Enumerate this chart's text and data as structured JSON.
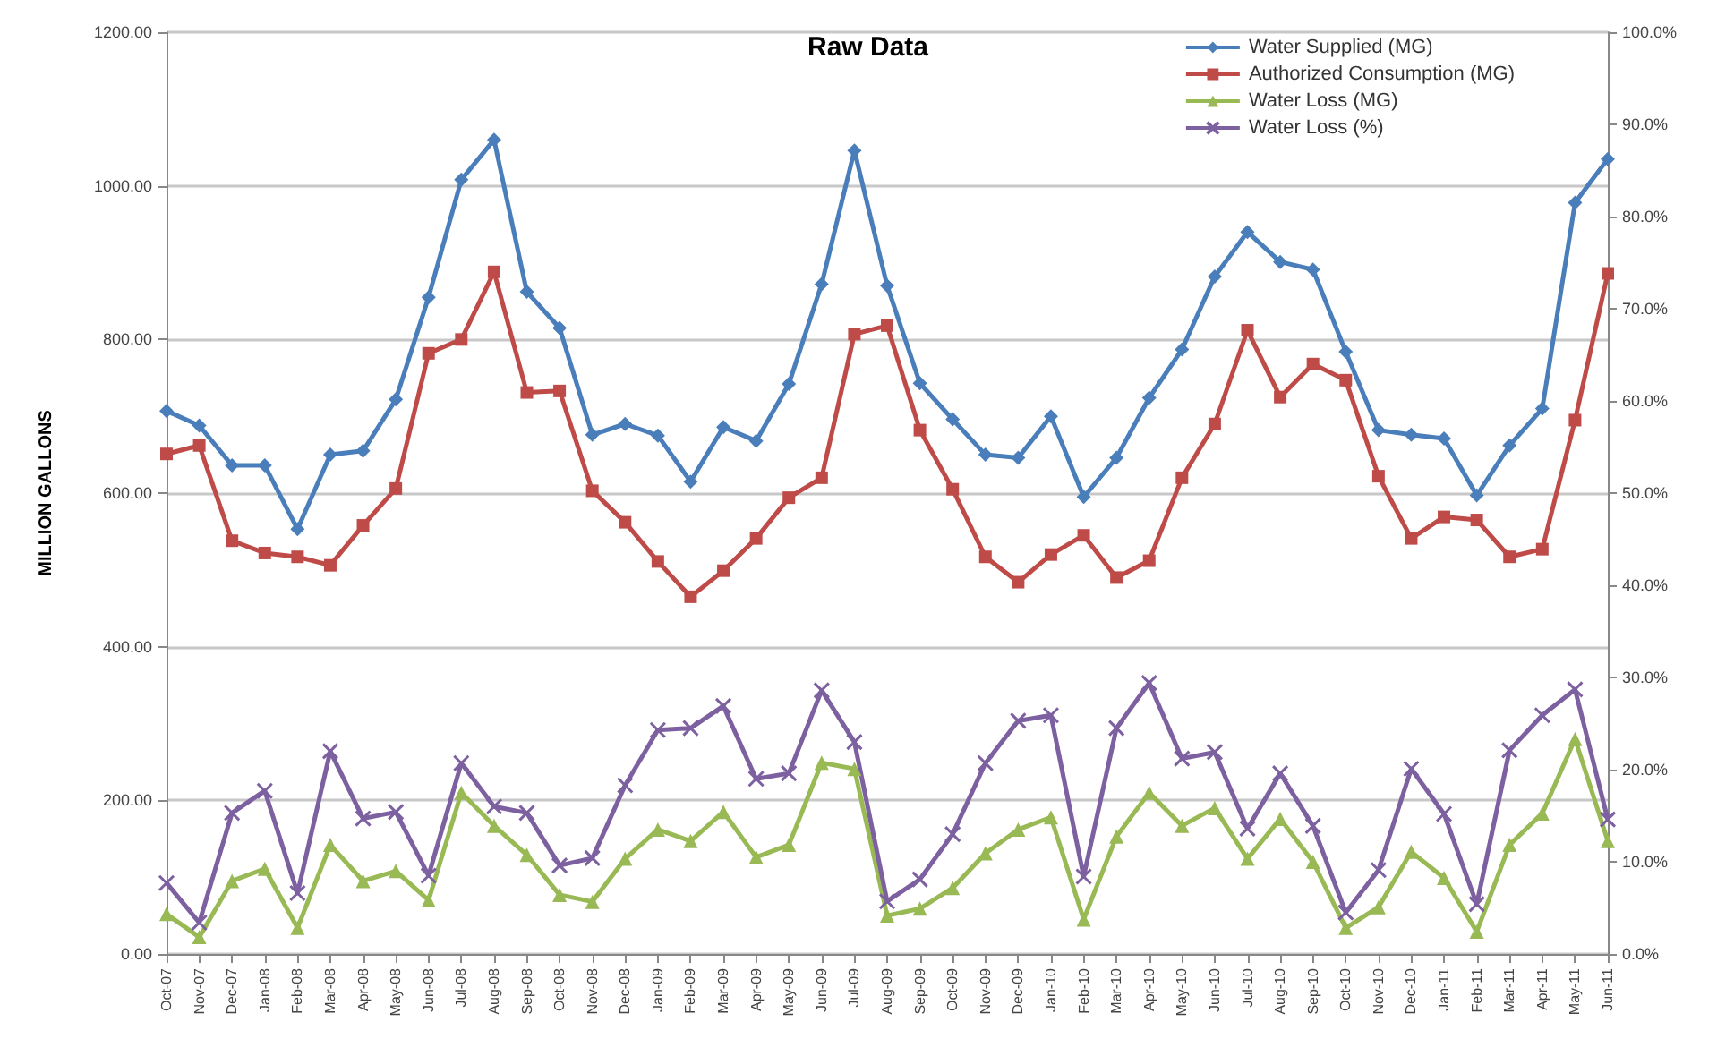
{
  "chart_data": {
    "type": "line",
    "title": "Raw Data",
    "ylabel": "MILLION GALLONS",
    "categories": [
      "Oct-07",
      "Nov-07",
      "Dec-07",
      "Jan-08",
      "Feb-08",
      "Mar-08",
      "Apr-08",
      "May-08",
      "Jun-08",
      "Jul-08",
      "Aug-08",
      "Sep-08",
      "Oct-08",
      "Nov-08",
      "Dec-08",
      "Jan-09",
      "Feb-09",
      "Mar-09",
      "Apr-09",
      "May-09",
      "Jun-09",
      "Jul-09",
      "Aug-09",
      "Sep-09",
      "Oct-09",
      "Nov-09",
      "Dec-09",
      "Jan-10",
      "Feb-10",
      "Mar-10",
      "Apr-10",
      "May-10",
      "Jun-10",
      "Jul-10",
      "Aug-10",
      "Sep-10",
      "Oct-10",
      "Nov-10",
      "Dec-10",
      "Jan-11",
      "Feb-11",
      "Mar-11",
      "Apr-11",
      "May-11",
      "Jun-11"
    ],
    "series": [
      {
        "name": "Water Supplied (MG)",
        "color": "#4a7ebb",
        "marker": "diamond",
        "values": [
          707,
          688,
          636,
          636,
          553,
          650,
          655,
          722,
          855,
          1008,
          1060,
          862,
          815,
          676,
          690,
          675,
          615,
          686,
          668,
          742,
          872,
          1046,
          870,
          743,
          696,
          650,
          646,
          700,
          595,
          646,
          724,
          787,
          882,
          940,
          901,
          891,
          784,
          682,
          676,
          671,
          597,
          662,
          710,
          978,
          1035
        ]
      },
      {
        "name": "Authorized Consumption (MG)",
        "color": "#be4b48",
        "marker": "square",
        "values": [
          651,
          662,
          538,
          522,
          517,
          506,
          558,
          606,
          782,
          800,
          888,
          731,
          733,
          603,
          562,
          511,
          465,
          499,
          541,
          594,
          620,
          807,
          818,
          682,
          605,
          517,
          484,
          520,
          545,
          490,
          512,
          620,
          690,
          812,
          725,
          768,
          747,
          622,
          541,
          569,
          565,
          517,
          527,
          695,
          886
        ]
      },
      {
        "name": "Water Loss (MG)",
        "color": "#98b954",
        "marker": "triangle",
        "values": [
          52,
          22,
          95,
          111,
          34,
          142,
          95,
          108,
          70,
          210,
          167,
          129,
          77,
          68,
          124,
          162,
          147,
          185,
          126,
          142,
          249,
          241,
          50,
          59,
          86,
          131,
          162,
          178,
          45,
          153,
          210,
          167,
          190,
          124,
          176,
          120,
          34,
          61,
          133,
          99,
          29,
          142,
          183,
          280,
          147
        ]
      },
      {
        "name": "Water Loss (%)",
        "color": "#7d60a0",
        "marker": "cross",
        "axis": "y2",
        "values": [
          7.7,
          3.4,
          15.3,
          17.7,
          6.6,
          22.0,
          14.7,
          15.4,
          8.5,
          20.7,
          16.0,
          15.3,
          9.6,
          10.4,
          18.3,
          24.3,
          24.5,
          26.9,
          19.0,
          19.6,
          28.6,
          23.0,
          5.7,
          8.1,
          13.0,
          20.7,
          25.3,
          25.9,
          8.4,
          24.5,
          29.4,
          21.2,
          21.9,
          13.6,
          19.6,
          13.9,
          4.5,
          9.1,
          20.1,
          15.2,
          5.4,
          22.1,
          25.9,
          28.7,
          14.6
        ]
      }
    ],
    "ylim": [
      0,
      1200
    ],
    "yticks": [
      {
        "value": 0,
        "label": "0.00"
      },
      {
        "value": 200,
        "label": "200.00"
      },
      {
        "value": 400,
        "label": "400.00"
      },
      {
        "value": 600,
        "label": "600.00"
      },
      {
        "value": 800,
        "label": "800.00"
      },
      {
        "value": 1000,
        "label": "1000.00"
      },
      {
        "value": 1200,
        "label": "1200.00"
      }
    ],
    "y2lim": [
      0,
      100
    ],
    "y2ticks": [
      {
        "value": 0,
        "label": "0.0%"
      },
      {
        "value": 10,
        "label": "10.0%"
      },
      {
        "value": 20,
        "label": "20.0%"
      },
      {
        "value": 30,
        "label": "30.0%"
      },
      {
        "value": 40,
        "label": "40.0%"
      },
      {
        "value": 50,
        "label": "50.0%"
      },
      {
        "value": 60,
        "label": "60.0%"
      },
      {
        "value": 70,
        "label": "70.0%"
      },
      {
        "value": 80,
        "label": "80.0%"
      },
      {
        "value": 90,
        "label": "90.0%"
      },
      {
        "value": 100,
        "label": "100.0%"
      }
    ],
    "grid": "y",
    "legend": "top right",
    "line_style": "solid"
  }
}
